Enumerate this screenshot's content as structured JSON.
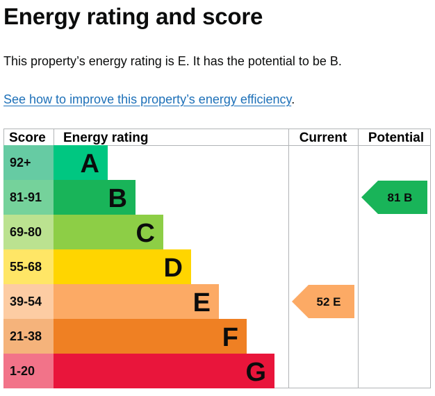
{
  "title": "Energy rating and score",
  "summary": "This property’s energy rating is E. It has the potential to be B.",
  "improve_link": "See how to improve this property’s energy efficiency",
  "improve_suffix": ".",
  "chart_data": {
    "type": "bar",
    "headers": {
      "score": "Score",
      "rating": "Energy rating",
      "current": "Current",
      "potential": "Potential"
    },
    "bands": [
      {
        "score": "92+",
        "letter": "A",
        "color": "#008054",
        "label_color": "#0b0c0c",
        "score_bg": "#66b398"
      },
      {
        "score": "81-91",
        "letter": "B",
        "color": "#19b459",
        "label_color": "#0b0c0c",
        "score_bg": "#75d29b"
      },
      {
        "score": "69-80",
        "letter": "C",
        "color": "#8dce46",
        "label_color": "#0b0c0c",
        "score_bg": "#bbe290"
      },
      {
        "score": "55-68",
        "letter": "D",
        "color": "#ffd500",
        "label_color": "#0b0c0c",
        "score_bg": "#ffe666"
      },
      {
        "score": "39-54",
        "letter": "E",
        "color": "#fcaa65",
        "label_color": "#0b0c0c",
        "score_bg": "#fdcca3"
      },
      {
        "score": "21-38",
        "letter": "F",
        "color": "#ef8023",
        "label_color": "#0b0c0c",
        "score_bg": "#f5b37b"
      },
      {
        "score": "1-20",
        "letter": "G",
        "color": "#e9153b",
        "label_color": "#0b0c0c",
        "score_bg": "#f27389"
      }
    ],
    "current": {
      "score": 52,
      "rating": "E"
    },
    "potential": {
      "score": 81,
      "rating": "B"
    }
  }
}
